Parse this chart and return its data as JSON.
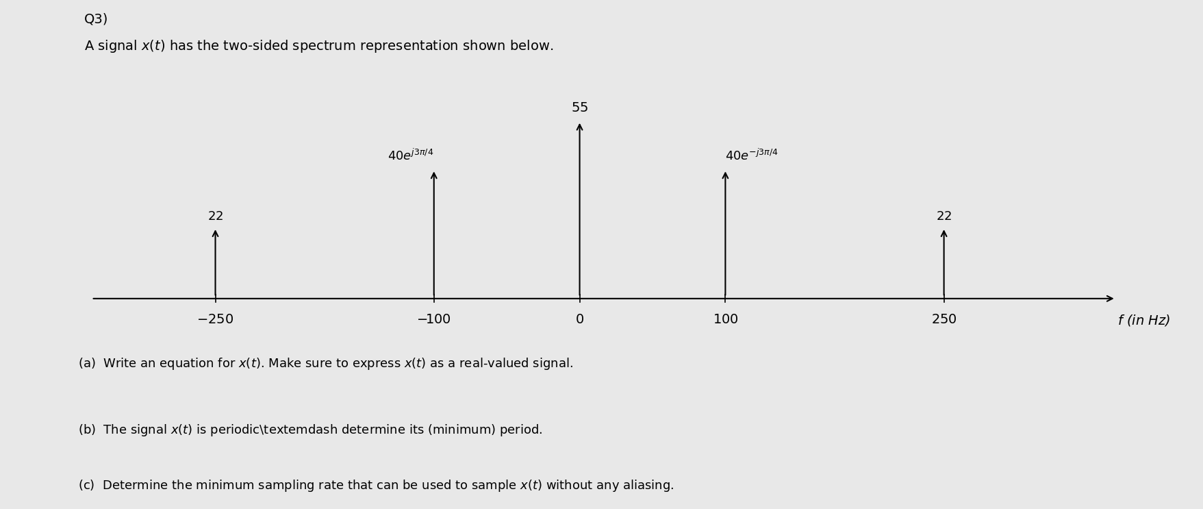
{
  "title_line1": "Q3)",
  "title_line2": "A signal x(t) has the two-sided spectrum representation shown below.",
  "background_color": "#e8e8e8",
  "freq_ticks": [
    -250,
    -100,
    0,
    100,
    250
  ],
  "freq_label": "f (in Hz)",
  "spikes": [
    {
      "f": -250,
      "amplitude": 22
    },
    {
      "f": -100,
      "amplitude": 40
    },
    {
      "f": 0,
      "amplitude": 55
    },
    {
      "f": 100,
      "amplitude": 40
    },
    {
      "f": 250,
      "amplitude": 22
    }
  ],
  "question_a": "(a)  Write an equation for x(t). Make sure to express x(t) as a real-valued signal.",
  "question_b": "(b)  The signal x(t) is periodic—determine its (minimum) period.",
  "question_c": "(c)  Determine the minimum sampling rate that can be used to sample x(t) without any aliasing.",
  "xlim": [
    -340,
    370
  ],
  "ylim_plot": [
    -10,
    72
  ],
  "figsize": [
    17.57,
    7.43
  ],
  "dpi": 100,
  "spike_scale": 1.0,
  "axis_y": 0,
  "text_fontsize": 14,
  "tick_fontsize": 14,
  "annotation_fontsize": 13
}
